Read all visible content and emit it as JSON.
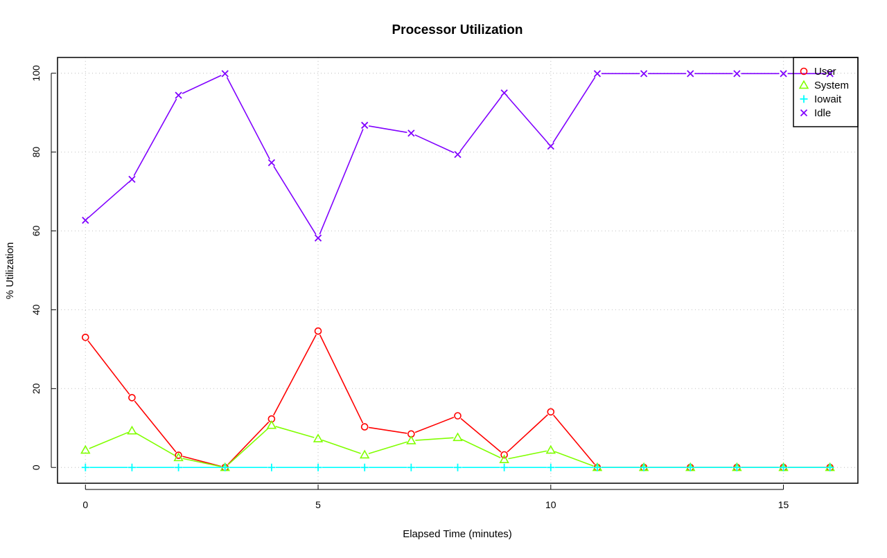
{
  "chart_data": {
    "type": "line",
    "title": "Processor Utilization",
    "xlabel": "Elapsed Time (minutes)",
    "ylabel": "% Utilization",
    "xlim": [
      -0.6,
      16.6
    ],
    "ylim": [
      -4,
      104
    ],
    "x_ticks": [
      0,
      5,
      10,
      15
    ],
    "y_ticks": [
      0,
      20,
      40,
      60,
      80,
      100
    ],
    "grid": true,
    "legend_position": "top-right",
    "x": [
      0,
      1,
      2,
      3,
      4,
      5,
      6,
      7,
      8,
      9,
      10,
      11,
      12,
      13,
      14,
      15,
      16
    ],
    "series": [
      {
        "name": "User",
        "color": "#ff0000",
        "marker": "circle",
        "values": [
          33.0,
          17.7,
          3.1,
          0,
          12.3,
          34.6,
          10.3,
          8.5,
          13.1,
          3.2,
          14.1,
          0,
          0,
          0,
          0,
          0,
          0
        ]
      },
      {
        "name": "System",
        "color": "#80ff00",
        "marker": "triangle",
        "values": [
          4.4,
          9.3,
          2.5,
          0,
          10.7,
          7.3,
          3.2,
          6.8,
          7.6,
          2.0,
          4.4,
          0,
          0,
          0,
          0,
          0,
          0
        ]
      },
      {
        "name": "Iowait",
        "color": "#00ffff",
        "marker": "plus",
        "values": [
          0,
          0,
          0,
          0,
          0,
          0,
          0,
          0,
          0,
          0,
          0,
          0,
          0,
          0,
          0,
          0,
          0
        ]
      },
      {
        "name": "Idle",
        "color": "#8000ff",
        "marker": "cross",
        "values": [
          62.7,
          73.1,
          94.4,
          99.9,
          77.3,
          58.2,
          86.8,
          84.8,
          79.4,
          95.0,
          81.5,
          99.9,
          99.9,
          99.9,
          99.9,
          99.9,
          99.9
        ]
      }
    ]
  }
}
